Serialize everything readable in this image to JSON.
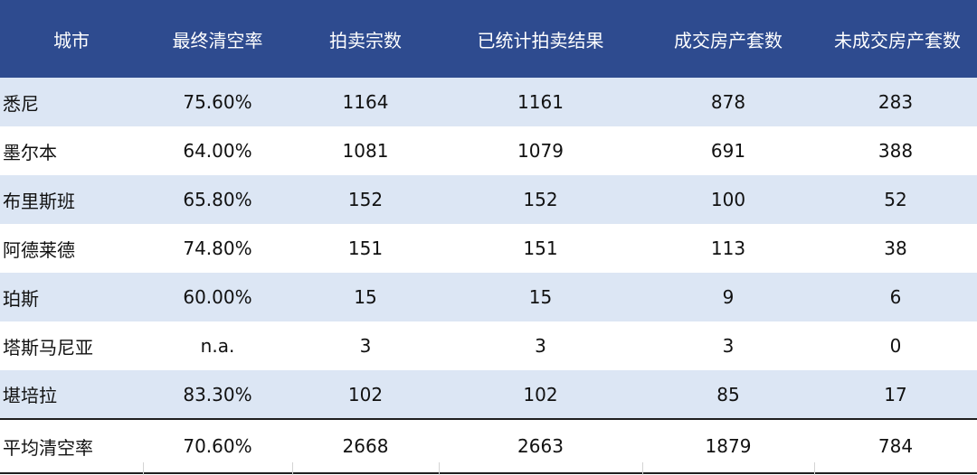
{
  "table": {
    "headers": [
      "城市",
      "最终清空率",
      "拍卖宗数",
      "已统计拍卖结果",
      "成交房产套数",
      "未成交房产套数"
    ],
    "rows": [
      [
        "悉尼",
        "75.60%",
        "1164",
        "1161",
        "878",
        "283"
      ],
      [
        "墨尔本",
        "64.00%",
        "1081",
        "1079",
        "691",
        "388"
      ],
      [
        "布里斯班",
        "65.80%",
        "152",
        "152",
        "100",
        "52"
      ],
      [
        "阿德莱德",
        "74.80%",
        "151",
        "151",
        "113",
        "38"
      ],
      [
        "珀斯",
        "60.00%",
        "15",
        "15",
        "9",
        "6"
      ],
      [
        "塔斯马尼亚",
        "n.a.",
        "3",
        "3",
        "3",
        "0"
      ],
      [
        "堪培拉",
        "83.30%",
        "102",
        "102",
        "85",
        "17"
      ]
    ],
    "summary": [
      "平均清空率",
      "70.60%",
      "2668",
      "2663",
      "1879",
      "784"
    ]
  },
  "colors": {
    "header_bg": "#2e4b8f",
    "header_text": "#ffffff",
    "row_shade": "#dce6f4",
    "accent": "#3b7d3b"
  }
}
